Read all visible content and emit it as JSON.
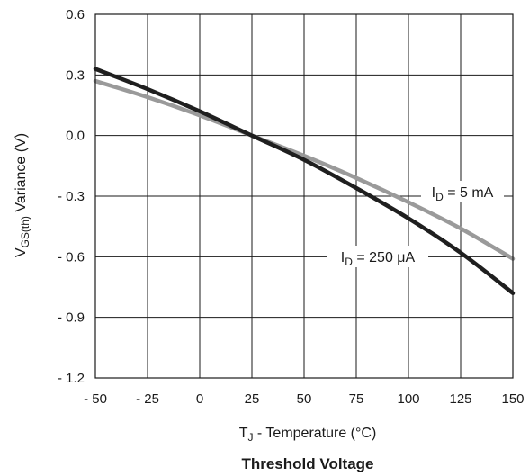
{
  "chart_data": {
    "type": "line",
    "title": "Threshold Voltage",
    "xlabel": {
      "base": "T",
      "sub": "J",
      "rest": " - Temperature (°C)"
    },
    "ylabel": {
      "base": "V",
      "sub": "GS(th)",
      "rest": " Variance (V)"
    },
    "xlim": [
      -50,
      150
    ],
    "ylim": [
      -1.2,
      0.6
    ],
    "grid": true,
    "x_ticks": [
      -50,
      -25,
      0,
      25,
      50,
      75,
      100,
      125,
      150
    ],
    "x_tick_labels": [
      "- 50",
      "- 25",
      "0",
      "25",
      "50",
      "75",
      "100",
      "125",
      "150"
    ],
    "y_ticks": [
      0.6,
      0.3,
      0.0,
      -0.3,
      -0.6,
      -0.9,
      -1.2
    ],
    "y_tick_labels": [
      "0.6",
      "0.3",
      "0.0",
      "- 0.3",
      "- 0.6",
      "- 0.9",
      "- 1.2"
    ],
    "series": [
      {
        "name": {
          "base": "I",
          "sub": "D",
          "rest": " = 250 μA"
        },
        "color": "#1f1f1f",
        "x": [
          -50,
          -25,
          0,
          25,
          50,
          75,
          100,
          125,
          150
        ],
        "y": [
          0.33,
          0.23,
          0.12,
          0.0,
          -0.12,
          -0.26,
          -0.41,
          -0.58,
          -0.78
        ]
      },
      {
        "name": {
          "base": "I",
          "sub": "D",
          "rest": " = 5 mA"
        },
        "color": "#9a9a9a",
        "x": [
          -50,
          -25,
          0,
          25,
          50,
          75,
          100,
          125,
          150
        ],
        "y": [
          0.27,
          0.19,
          0.1,
          0.0,
          -0.1,
          -0.21,
          -0.33,
          -0.46,
          -0.61
        ]
      }
    ]
  }
}
